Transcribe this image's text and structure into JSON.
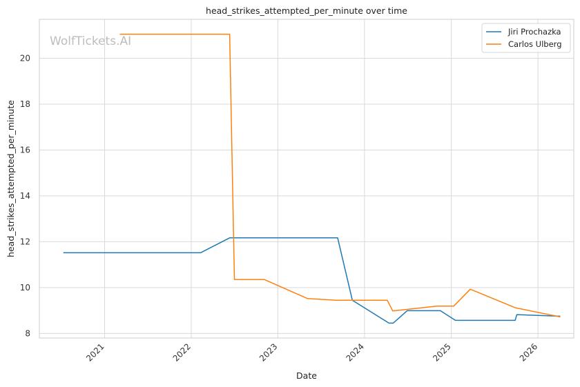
{
  "chart_data": {
    "type": "line",
    "title": "head_strikes_attempted_per_minute over time",
    "xlabel": "Date",
    "ylabel": "head_strikes_attempted_per_minute",
    "watermark": "WolfTickets.AI",
    "x_ticks": [
      "2021",
      "2022",
      "2023",
      "2024",
      "2025",
      "2026"
    ],
    "y_ticks": [
      8,
      10,
      12,
      14,
      16,
      18,
      20
    ],
    "xlim": [
      "2020-04-01",
      "2026-06-01"
    ],
    "ylim": [
      7.8,
      21.7
    ],
    "grid": true,
    "legend_position": "top-right",
    "series": [
      {
        "name": "Jiri Prochazka",
        "color": "#1f77b4",
        "points": [
          [
            "2020-07-11",
            11.52
          ],
          [
            "2022-02-09",
            11.52
          ],
          [
            "2022-06-12",
            12.17
          ],
          [
            "2023-09-10",
            12.17
          ],
          [
            "2023-11-11",
            9.45
          ],
          [
            "2024-04-13",
            8.45
          ],
          [
            "2024-05-01",
            8.45
          ],
          [
            "2024-06-29",
            8.99
          ],
          [
            "2024-11-16",
            8.99
          ],
          [
            "2025-01-18",
            8.57
          ],
          [
            "2025-09-27",
            8.57
          ],
          [
            "2025-10-04",
            8.82
          ],
          [
            "2026-04-05",
            8.75
          ]
        ]
      },
      {
        "name": "Carlos Ulberg",
        "color": "#ff7f0e",
        "points": [
          [
            "2021-03-06",
            21.05
          ],
          [
            "2022-06-12",
            21.05
          ],
          [
            "2022-07-02",
            10.35
          ],
          [
            "2022-11-05",
            10.35
          ],
          [
            "2023-05-06",
            9.52
          ],
          [
            "2023-09-02",
            9.45
          ],
          [
            "2024-04-06",
            9.45
          ],
          [
            "2024-04-29",
            8.98
          ],
          [
            "2024-11-02",
            9.19
          ],
          [
            "2025-01-11",
            9.19
          ],
          [
            "2025-03-22",
            9.93
          ],
          [
            "2025-09-27",
            9.12
          ],
          [
            "2026-04-05",
            8.72
          ]
        ]
      }
    ]
  }
}
